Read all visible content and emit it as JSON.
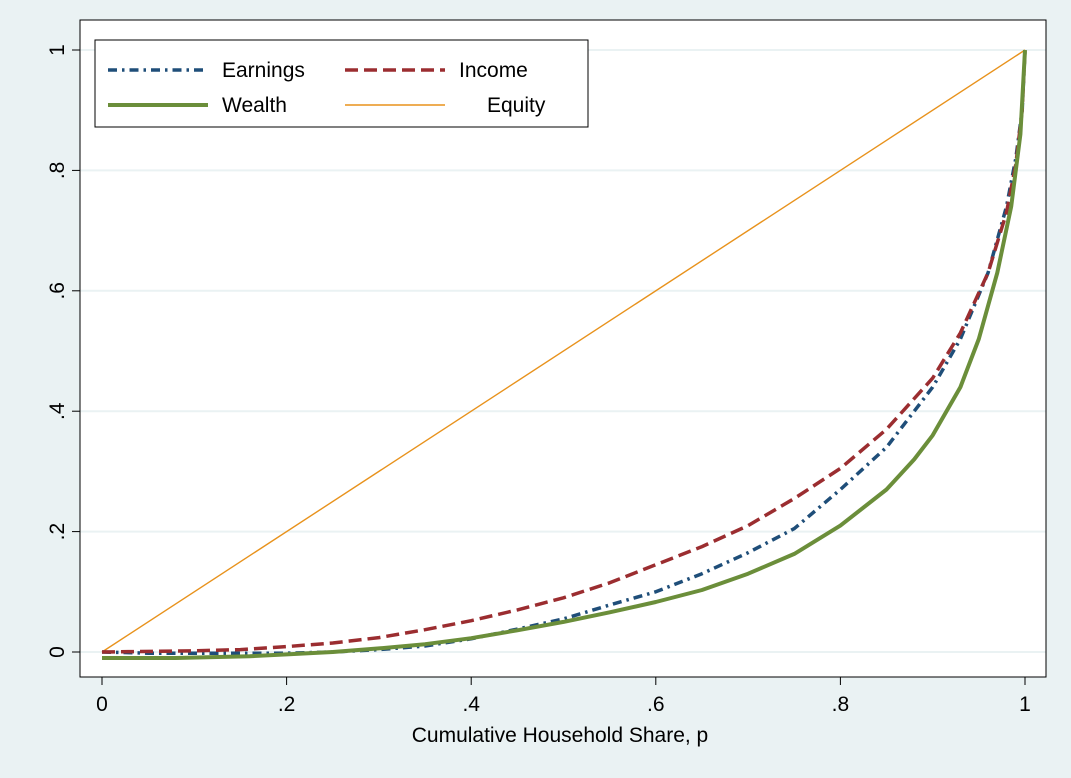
{
  "chart_data": {
    "type": "line",
    "title": "",
    "xlabel": "Cumulative Household Share, p",
    "ylabel": "",
    "xlim": [
      0,
      1
    ],
    "ylim": [
      -0.02,
      1.02
    ],
    "grid": true,
    "legend_position": "top-left",
    "x_ticks": [
      {
        "value": 0,
        "label": "0"
      },
      {
        "value": 0.2,
        "label": ".2"
      },
      {
        "value": 0.4,
        "label": ".4"
      },
      {
        "value": 0.6,
        "label": ".6"
      },
      {
        "value": 0.8,
        "label": ".8"
      },
      {
        "value": 1,
        "label": "1"
      }
    ],
    "y_ticks": [
      {
        "value": 0,
        "label": "0"
      },
      {
        "value": 0.2,
        "label": ".2"
      },
      {
        "value": 0.4,
        "label": ".4"
      },
      {
        "value": 0.6,
        "label": ".6"
      },
      {
        "value": 0.8,
        "label": ".8"
      },
      {
        "value": 1,
        "label": "1"
      }
    ],
    "series": [
      {
        "name": "Earnings",
        "color": "#1f4e79",
        "style": "dash-dot",
        "points": [
          [
            0,
            0
          ],
          [
            0.05,
            -0.002
          ],
          [
            0.1,
            -0.002
          ],
          [
            0.15,
            -0.002
          ],
          [
            0.2,
            -0.002
          ],
          [
            0.25,
            0.0
          ],
          [
            0.3,
            0.004
          ],
          [
            0.35,
            0.01
          ],
          [
            0.4,
            0.022
          ],
          [
            0.45,
            0.038
          ],
          [
            0.5,
            0.055
          ],
          [
            0.55,
            0.078
          ],
          [
            0.6,
            0.1
          ],
          [
            0.65,
            0.13
          ],
          [
            0.7,
            0.165
          ],
          [
            0.75,
            0.205
          ],
          [
            0.8,
            0.27
          ],
          [
            0.85,
            0.34
          ],
          [
            0.9,
            0.44
          ],
          [
            0.93,
            0.52
          ],
          [
            0.96,
            0.63
          ],
          [
            0.98,
            0.74
          ],
          [
            0.99,
            0.82
          ],
          [
            0.997,
            0.9
          ],
          [
            1,
            1
          ]
        ]
      },
      {
        "name": "Income",
        "color": "#9b2d30",
        "style": "dash",
        "points": [
          [
            0,
            0
          ],
          [
            0.1,
            0.002
          ],
          [
            0.15,
            0.004
          ],
          [
            0.2,
            0.009
          ],
          [
            0.25,
            0.015
          ],
          [
            0.3,
            0.024
          ],
          [
            0.35,
            0.037
          ],
          [
            0.4,
            0.052
          ],
          [
            0.45,
            0.07
          ],
          [
            0.5,
            0.09
          ],
          [
            0.55,
            0.115
          ],
          [
            0.6,
            0.145
          ],
          [
            0.65,
            0.175
          ],
          [
            0.7,
            0.21
          ],
          [
            0.75,
            0.255
          ],
          [
            0.8,
            0.305
          ],
          [
            0.85,
            0.37
          ],
          [
            0.9,
            0.455
          ],
          [
            0.93,
            0.53
          ],
          [
            0.96,
            0.63
          ],
          [
            0.98,
            0.73
          ],
          [
            0.99,
            0.81
          ],
          [
            0.997,
            0.9
          ],
          [
            1,
            1
          ]
        ]
      },
      {
        "name": "Wealth",
        "color": "#6b8e3a",
        "style": "solid-thick",
        "points": [
          [
            0,
            -0.01
          ],
          [
            0.08,
            -0.01
          ],
          [
            0.16,
            -0.007
          ],
          [
            0.2,
            -0.004
          ],
          [
            0.25,
            0.0
          ],
          [
            0.3,
            0.006
          ],
          [
            0.35,
            0.013
          ],
          [
            0.4,
            0.023
          ],
          [
            0.45,
            0.036
          ],
          [
            0.5,
            0.05
          ],
          [
            0.55,
            0.066
          ],
          [
            0.6,
            0.083
          ],
          [
            0.65,
            0.103
          ],
          [
            0.7,
            0.13
          ],
          [
            0.75,
            0.163
          ],
          [
            0.8,
            0.21
          ],
          [
            0.85,
            0.27
          ],
          [
            0.88,
            0.32
          ],
          [
            0.9,
            0.36
          ],
          [
            0.93,
            0.44
          ],
          [
            0.95,
            0.52
          ],
          [
            0.97,
            0.63
          ],
          [
            0.985,
            0.74
          ],
          [
            0.995,
            0.86
          ],
          [
            1,
            1
          ]
        ]
      },
      {
        "name": "Equity",
        "color": "#e8921c",
        "style": "solid-thin",
        "points": [
          [
            0,
            0
          ],
          [
            1,
            1
          ]
        ]
      }
    ]
  }
}
